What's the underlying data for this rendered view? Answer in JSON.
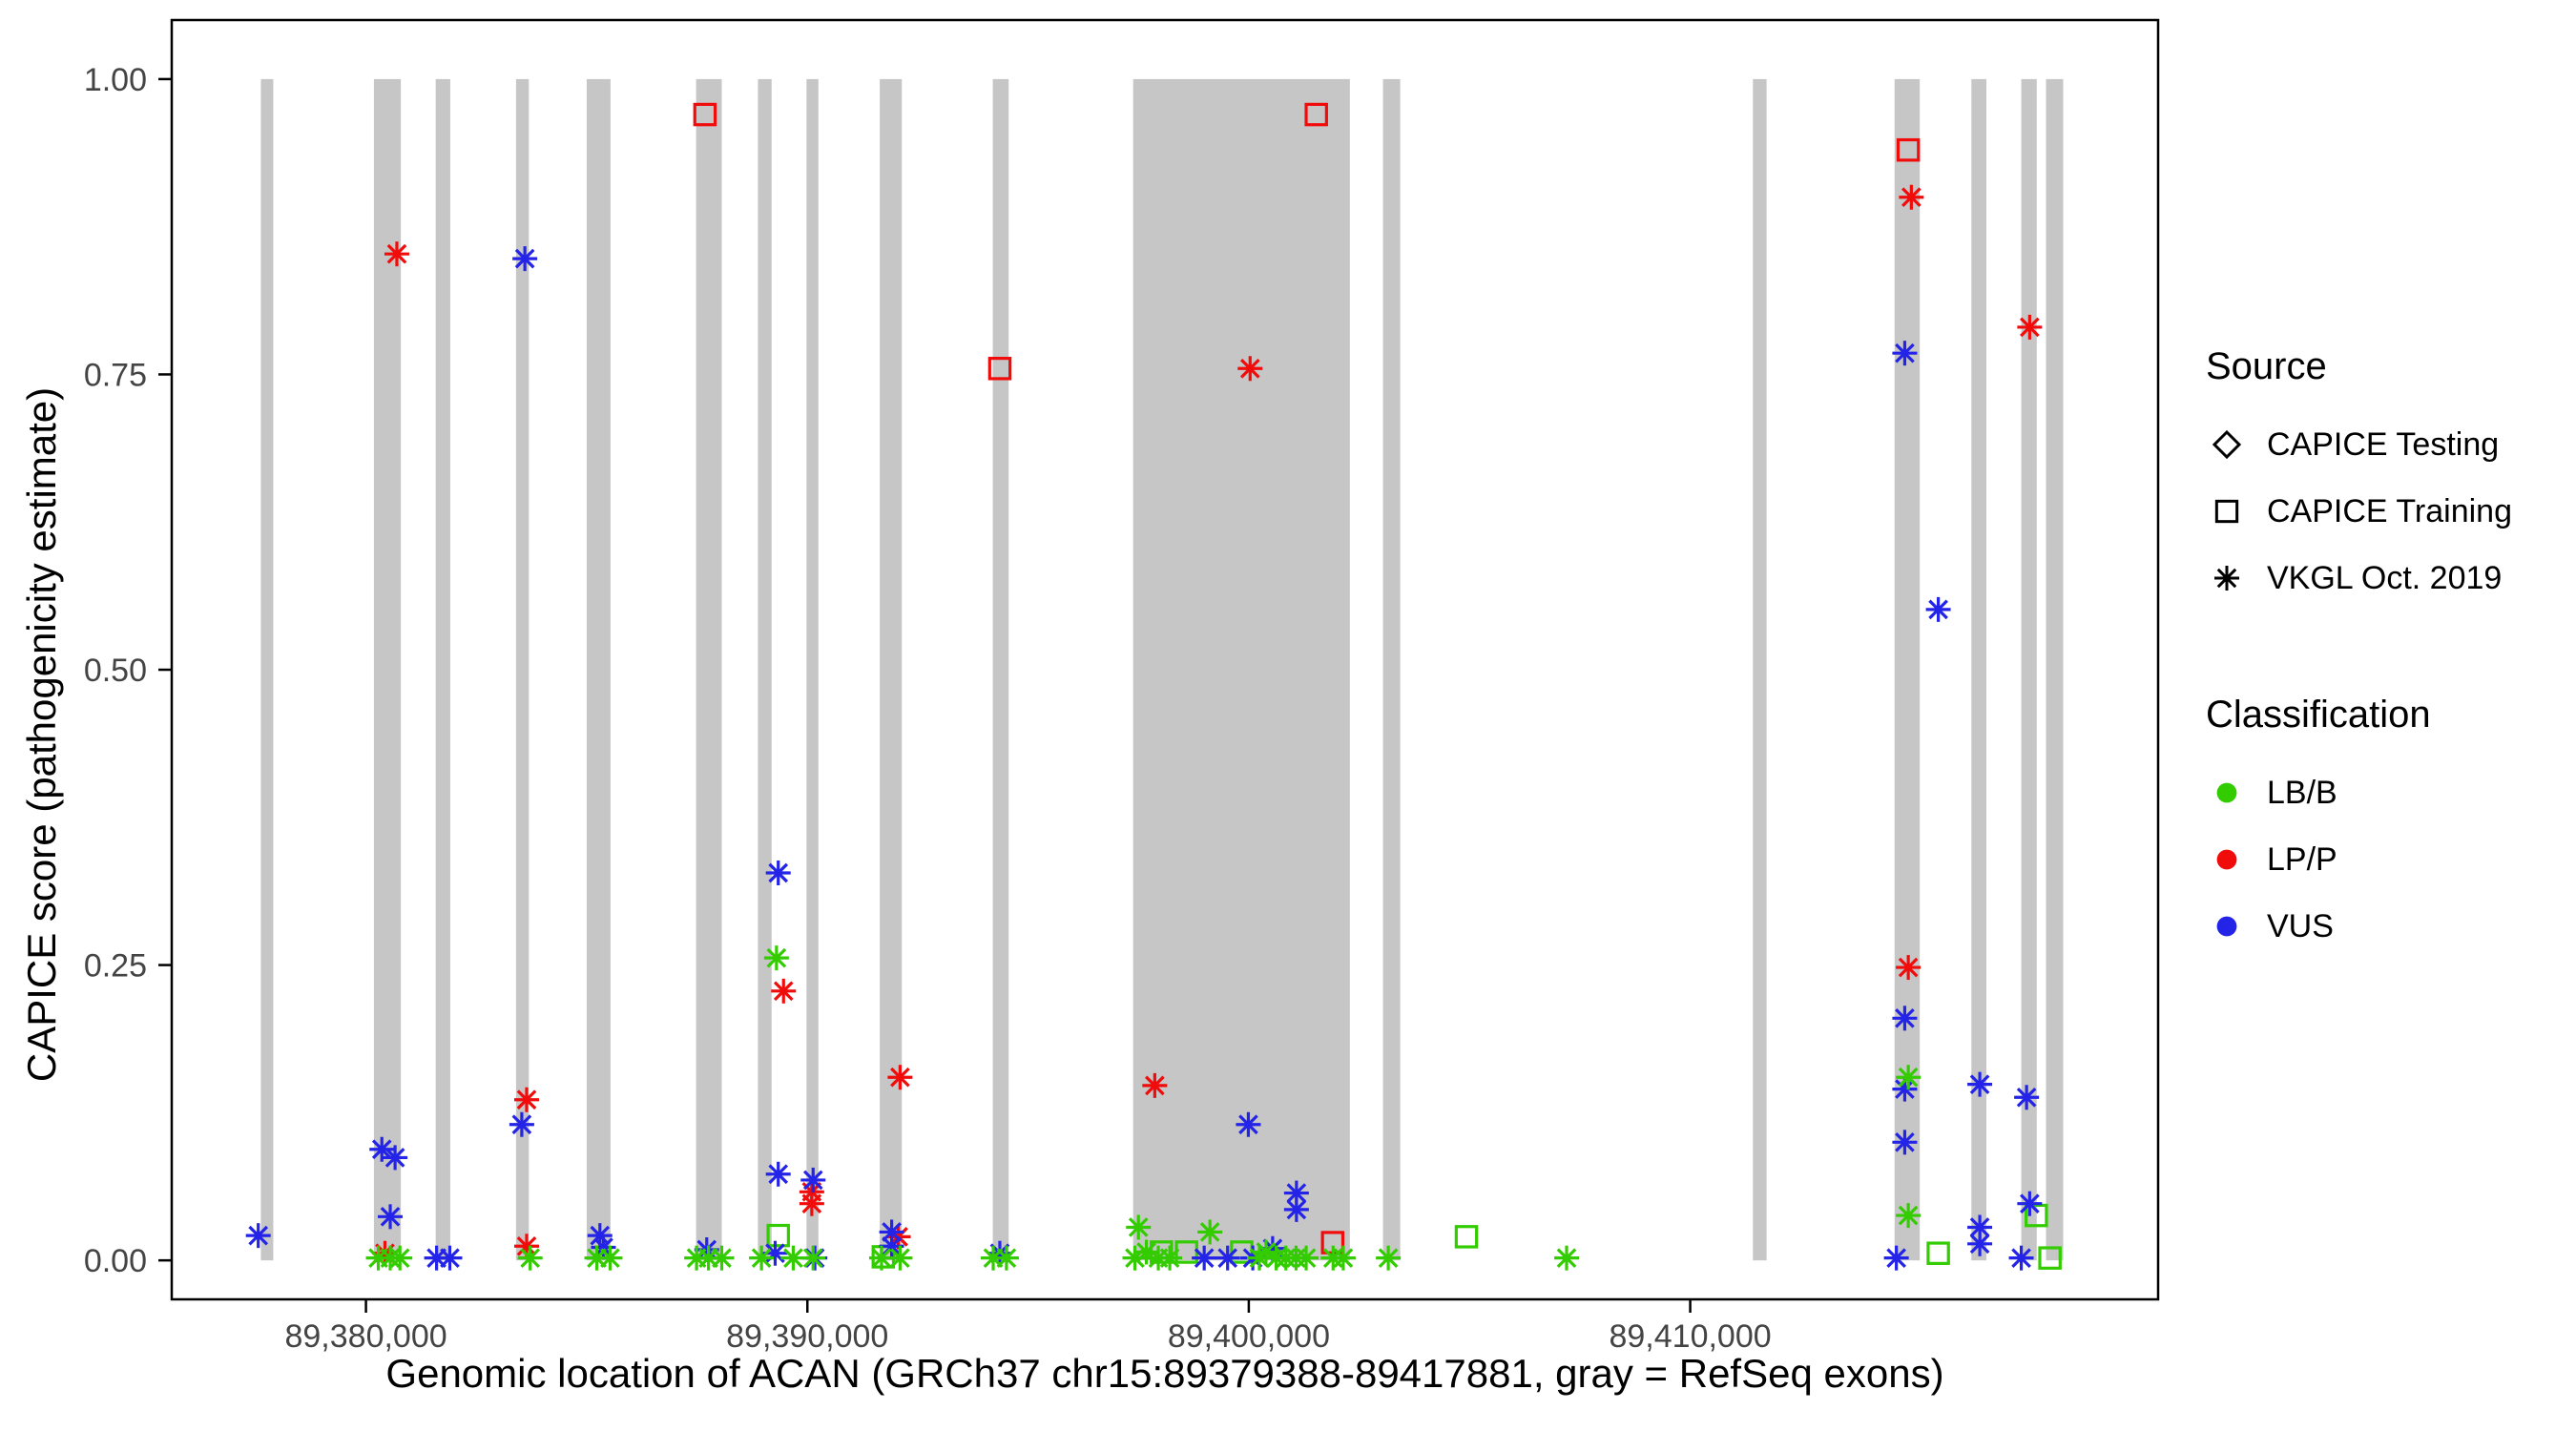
{
  "chart_data": {
    "type": "scatter",
    "xlabel": "Genomic location of ACAN (GRCh37 chr15:89379388-89417881, gray = RefSeq exons)",
    "ylabel": "CAPICE score (pathogenicity estimate)",
    "xlim": [
      89375600,
      89420600
    ],
    "ylim": [
      -0.033,
      1.05
    ],
    "grid": false,
    "panel_border_color": "#000000",
    "exon_color": "#c6c6c6",
    "classification_colors": {
      "LB/B": "#33cc00",
      "LP/P": "#f10c0c",
      "VUS": "#2424e8"
    },
    "x_ticks": [
      {
        "value": 89380000,
        "label": "89,380,000"
      },
      {
        "value": 89390000,
        "label": "89,390,000"
      },
      {
        "value": 89400000,
        "label": "89,400,000"
      },
      {
        "value": 89410000,
        "label": "89,410,000"
      }
    ],
    "y_ticks": [
      {
        "value": 0.0,
        "label": "0.00"
      },
      {
        "value": 0.25,
        "label": "0.25"
      },
      {
        "value": 0.5,
        "label": "0.50"
      },
      {
        "value": 0.75,
        "label": "0.75"
      },
      {
        "value": 1.0,
        "label": "1.00"
      }
    ],
    "exons": [
      [
        89377620,
        89377900
      ],
      [
        89380180,
        89380790
      ],
      [
        89381580,
        89381910
      ],
      [
        89383400,
        89383690
      ],
      [
        89385000,
        89385540
      ],
      [
        89387480,
        89388060
      ],
      [
        89388880,
        89389190
      ],
      [
        89389980,
        89390250
      ],
      [
        89391640,
        89392140
      ],
      [
        89394200,
        89394560
      ],
      [
        89397380,
        89402290
      ],
      [
        89403040,
        89403430
      ],
      [
        89411420,
        89411730
      ],
      [
        89414630,
        89415200
      ],
      [
        89416370,
        89416710
      ],
      [
        89417500,
        89417850
      ],
      [
        89418060,
        89418450
      ]
    ],
    "series": [
      {
        "source": "CAPICE Training",
        "classification": "LP/P",
        "shape": "square",
        "points": [
          [
            89387680,
            0.97
          ],
          [
            89401530,
            0.97
          ],
          [
            89414940,
            0.94
          ],
          [
            89394360,
            0.755
          ],
          [
            89401900,
            0.015
          ]
        ]
      },
      {
        "source": "CAPICE Training",
        "classification": "LB/B",
        "shape": "square",
        "points": [
          [
            89389340,
            0.021
          ],
          [
            89391720,
            0.003
          ],
          [
            89398020,
            0.007
          ],
          [
            89398590,
            0.007
          ],
          [
            89399840,
            0.007
          ],
          [
            89404930,
            0.02
          ],
          [
            89415620,
            0.006
          ],
          [
            89417840,
            0.038
          ],
          [
            89418150,
            0.002
          ]
        ]
      },
      {
        "source": "VKGL Oct. 2019",
        "classification": "LP/P",
        "shape": "asterisk",
        "points": [
          [
            89415010,
            0.9
          ],
          [
            89380700,
            0.852
          ],
          [
            89417690,
            0.79
          ],
          [
            89400030,
            0.755
          ],
          [
            89414940,
            0.248
          ],
          [
            89389460,
            0.228
          ],
          [
            89392100,
            0.155
          ],
          [
            89397870,
            0.148
          ],
          [
            89383640,
            0.136
          ],
          [
            89390100,
            0.058
          ],
          [
            89390100,
            0.048
          ],
          [
            89392060,
            0.02
          ],
          [
            89383640,
            0.012
          ],
          [
            89380430,
            0.006
          ]
        ]
      },
      {
        "source": "VKGL Oct. 2019",
        "classification": "VUS",
        "shape": "asterisk",
        "points": [
          [
            89383600,
            0.848
          ],
          [
            89414860,
            0.768
          ],
          [
            89415620,
            0.551
          ],
          [
            89389340,
            0.328
          ],
          [
            89414860,
            0.205
          ],
          [
            89416560,
            0.149
          ],
          [
            89414860,
            0.145
          ],
          [
            89417620,
            0.138
          ],
          [
            89383530,
            0.115
          ],
          [
            89399990,
            0.115
          ],
          [
            89414860,
            0.1
          ],
          [
            89380360,
            0.094
          ],
          [
            89380660,
            0.087
          ],
          [
            89389340,
            0.073
          ],
          [
            89390130,
            0.068
          ],
          [
            89401080,
            0.057
          ],
          [
            89417690,
            0.048
          ],
          [
            89401080,
            0.043
          ],
          [
            89380550,
            0.037
          ],
          [
            89416560,
            0.028
          ],
          [
            89391910,
            0.024
          ],
          [
            89385300,
            0.021
          ],
          [
            89377560,
            0.021
          ],
          [
            89416560,
            0.014
          ],
          [
            89391910,
            0.012
          ],
          [
            89385380,
            0.011
          ],
          [
            89400540,
            0.01
          ],
          [
            89387720,
            0.009
          ],
          [
            89389270,
            0.006
          ],
          [
            89394360,
            0.006
          ],
          [
            89381600,
            0.002
          ],
          [
            89381900,
            0.002
          ],
          [
            89390170,
            0.002
          ],
          [
            89398990,
            0.002
          ],
          [
            89399520,
            0.002
          ],
          [
            89400090,
            0.002
          ],
          [
            89414670,
            0.002
          ],
          [
            89417500,
            0.002
          ]
        ]
      },
      {
        "source": "VKGL Oct. 2019",
        "classification": "LB/B",
        "shape": "asterisk",
        "points": [
          [
            89389300,
            0.256
          ],
          [
            89414940,
            0.155
          ],
          [
            89414940,
            0.038
          ],
          [
            89397500,
            0.028
          ],
          [
            89399120,
            0.024
          ],
          [
            89397680,
            0.007
          ],
          [
            89400390,
            0.007
          ],
          [
            89380280,
            0.002
          ],
          [
            89380550,
            0.002
          ],
          [
            89380770,
            0.002
          ],
          [
            89383720,
            0.002
          ],
          [
            89385230,
            0.002
          ],
          [
            89385530,
            0.002
          ],
          [
            89387490,
            0.002
          ],
          [
            89387760,
            0.002
          ],
          [
            89388060,
            0.002
          ],
          [
            89388960,
            0.002
          ],
          [
            89389680,
            0.002
          ],
          [
            89390130,
            0.002
          ],
          [
            89391680,
            0.002
          ],
          [
            89392100,
            0.002
          ],
          [
            89394210,
            0.002
          ],
          [
            89394510,
            0.002
          ],
          [
            89397420,
            0.002
          ],
          [
            89397950,
            0.002
          ],
          [
            89398210,
            0.002
          ],
          [
            89400240,
            0.002
          ],
          [
            89400620,
            0.002
          ],
          [
            89400840,
            0.002
          ],
          [
            89401070,
            0.002
          ],
          [
            89401300,
            0.002
          ],
          [
            89401910,
            0.002
          ],
          [
            89402140,
            0.002
          ],
          [
            89403160,
            0.002
          ],
          [
            89407200,
            0.002
          ]
        ]
      }
    ],
    "legend": {
      "source": {
        "title": "Source",
        "items": [
          {
            "label": "CAPICE Testing",
            "shape": "diamond"
          },
          {
            "label": "CAPICE Training",
            "shape": "square"
          },
          {
            "label": "VKGL Oct. 2019",
            "shape": "asterisk"
          }
        ]
      },
      "classification": {
        "title": "Classification",
        "items": [
          {
            "label": "LB/B",
            "classification": "LB/B"
          },
          {
            "label": "LP/P",
            "classification": "LP/P"
          },
          {
            "label": "VUS",
            "classification": "VUS"
          }
        ]
      }
    }
  }
}
